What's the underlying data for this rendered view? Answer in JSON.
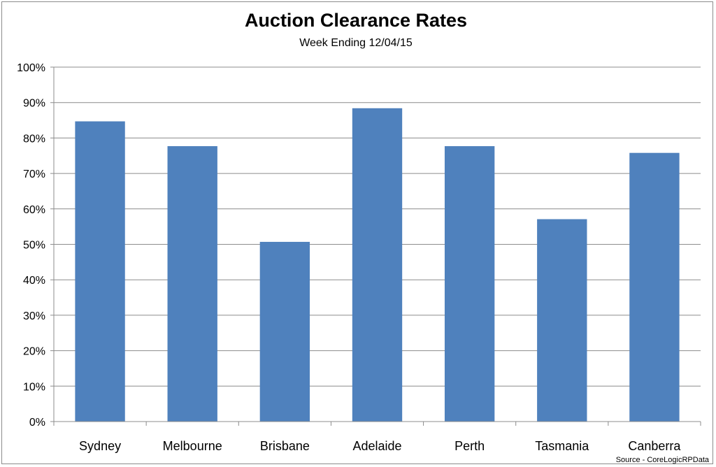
{
  "chart_data": {
    "type": "bar",
    "title": "Auction Clearance Rates",
    "subtitle": "Week Ending 12/04/15",
    "categories": [
      "Sydney",
      "Melbourne",
      "Brisbane",
      "Adelaide",
      "Perth",
      "Tasmania",
      "Canberra"
    ],
    "values": [
      84.7,
      77.7,
      50.7,
      88.4,
      77.7,
      57.1,
      75.8
    ],
    "ylim": [
      0,
      100
    ],
    "yticks": [
      "0%",
      "10%",
      "20%",
      "30%",
      "40%",
      "50%",
      "60%",
      "70%",
      "80%",
      "90%",
      "100%"
    ],
    "grid": true,
    "legend": "none",
    "bar_color": "#4f81bd",
    "source": "Source - CoreLogicRPData"
  }
}
